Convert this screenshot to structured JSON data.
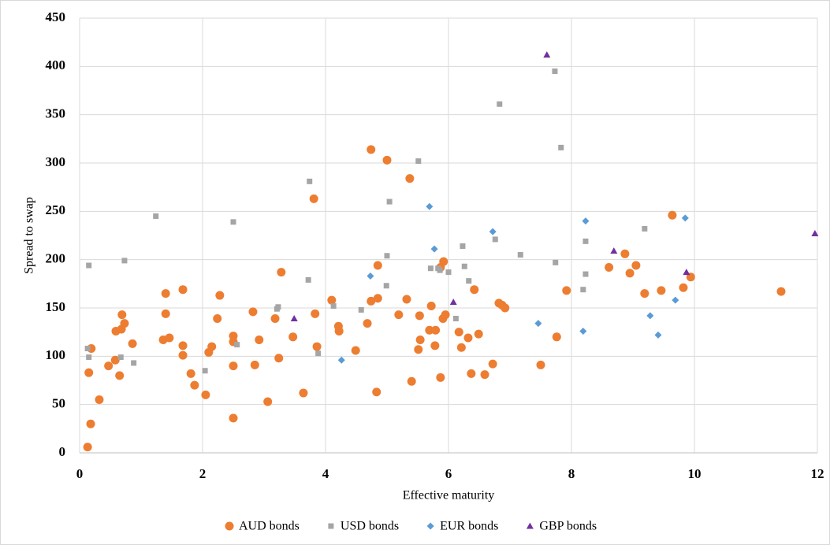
{
  "chart_data": {
    "type": "scatter",
    "x_label": "Effective maturity",
    "y_label": "Spread to swap",
    "xlim": [
      0,
      12
    ],
    "xticks": [
      0,
      2,
      4,
      6,
      8,
      10,
      12
    ],
    "ylim": [
      0,
      450
    ],
    "yticks": [
      0,
      50,
      100,
      150,
      200,
      250,
      300,
      350,
      400,
      450
    ],
    "grid": true,
    "legend": "bottom",
    "series": [
      {
        "name": "AUD bonds",
        "color": "#ed7d31",
        "marker": "circle",
        "x": [
          0.13,
          0.18,
          0.19,
          0.15,
          0.32,
          0.47,
          0.58,
          0.59,
          0.65,
          0.68,
          0.69,
          0.73,
          0.86,
          1.36,
          1.4,
          1.4,
          1.46,
          1.68,
          1.68,
          1.68,
          1.81,
          1.87,
          2.05,
          2.1,
          2.15,
          2.24,
          2.28,
          2.5,
          2.5,
          2.5,
          2.5,
          2.82,
          2.85,
          2.92,
          3.06,
          3.18,
          3.24,
          3.28,
          3.47,
          3.64,
          3.81,
          3.83,
          3.86,
          4.1,
          4.21,
          4.22,
          4.49,
          4.68,
          4.74,
          4.74,
          4.85,
          4.85,
          4.83,
          5.0,
          5.19,
          5.32,
          5.37,
          5.4,
          5.53,
          5.54,
          5.51,
          5.69,
          5.72,
          5.79,
          5.78,
          5.87,
          5.87,
          5.92,
          5.91,
          5.95,
          6.17,
          6.21,
          6.32,
          6.37,
          6.42,
          6.49,
          6.59,
          6.72,
          6.82,
          6.87,
          6.92,
          7.5,
          7.76,
          7.92,
          8.61,
          8.87,
          8.95,
          9.05,
          9.19,
          9.46,
          9.64,
          9.82,
          9.94,
          11.41
        ],
        "y": [
          6,
          30,
          108,
          83,
          55,
          90,
          96,
          126,
          80,
          128,
          143,
          134,
          113,
          117,
          165,
          144,
          119,
          169,
          111,
          101,
          82,
          70,
          60,
          104,
          110,
          139,
          163,
          121,
          115,
          90,
          36,
          146,
          91,
          117,
          53,
          139,
          98,
          187,
          120,
          62,
          263,
          144,
          110,
          158,
          131,
          126,
          106,
          134,
          314,
          157,
          194,
          160,
          63,
          303,
          143,
          159,
          284,
          74,
          142,
          117,
          107,
          127,
          152,
          127,
          111,
          78,
          192,
          198,
          139,
          143,
          125,
          109,
          119,
          82,
          169,
          123,
          81,
          92,
          155,
          153,
          150,
          91,
          120,
          168,
          192,
          206,
          186,
          194,
          165,
          168,
          246,
          171,
          182,
          167
        ]
      },
      {
        "name": "USD bonds",
        "color": "#a5a5a5",
        "marker": "square",
        "x": [
          0.13,
          0.15,
          0.15,
          0.67,
          0.73,
          0.88,
          1.24,
          2.04,
          2.5,
          2.56,
          3.23,
          3.21,
          3.72,
          3.74,
          3.88,
          4.13,
          4.58,
          4.99,
          5.0,
          5.04,
          5.51,
          5.71,
          5.83,
          5.86,
          6.0,
          6.12,
          6.23,
          6.26,
          6.33,
          6.76,
          6.83,
          7.17,
          7.73,
          7.74,
          7.83,
          8.19,
          8.23,
          8.23,
          9.19
        ],
        "y": [
          108,
          99,
          194,
          99,
          199,
          93,
          245,
          85,
          239,
          112,
          151,
          149,
          179,
          281,
          103,
          152,
          148,
          173,
          204,
          260,
          302,
          191,
          191,
          189,
          187,
          139,
          214,
          193,
          178,
          221,
          361,
          205,
          395,
          197,
          316,
          169,
          185,
          219,
          232
        ]
      },
      {
        "name": "EUR bonds",
        "color": "#5b9bd5",
        "marker": "diamond",
        "x": [
          4.26,
          4.73,
          5.69,
          5.77,
          6.72,
          7.46,
          8.19,
          8.23,
          9.28,
          9.41,
          9.69,
          9.85
        ],
        "y": [
          96,
          183,
          255,
          211,
          229,
          134,
          126,
          240,
          142,
          122,
          158,
          243
        ]
      },
      {
        "name": "GBP bonds",
        "color": "#7030a0",
        "marker": "triangle",
        "x": [
          3.49,
          6.08,
          7.6,
          8.69,
          9.87,
          11.96
        ],
        "y": [
          139,
          156,
          412,
          209,
          187,
          227
        ]
      }
    ]
  }
}
